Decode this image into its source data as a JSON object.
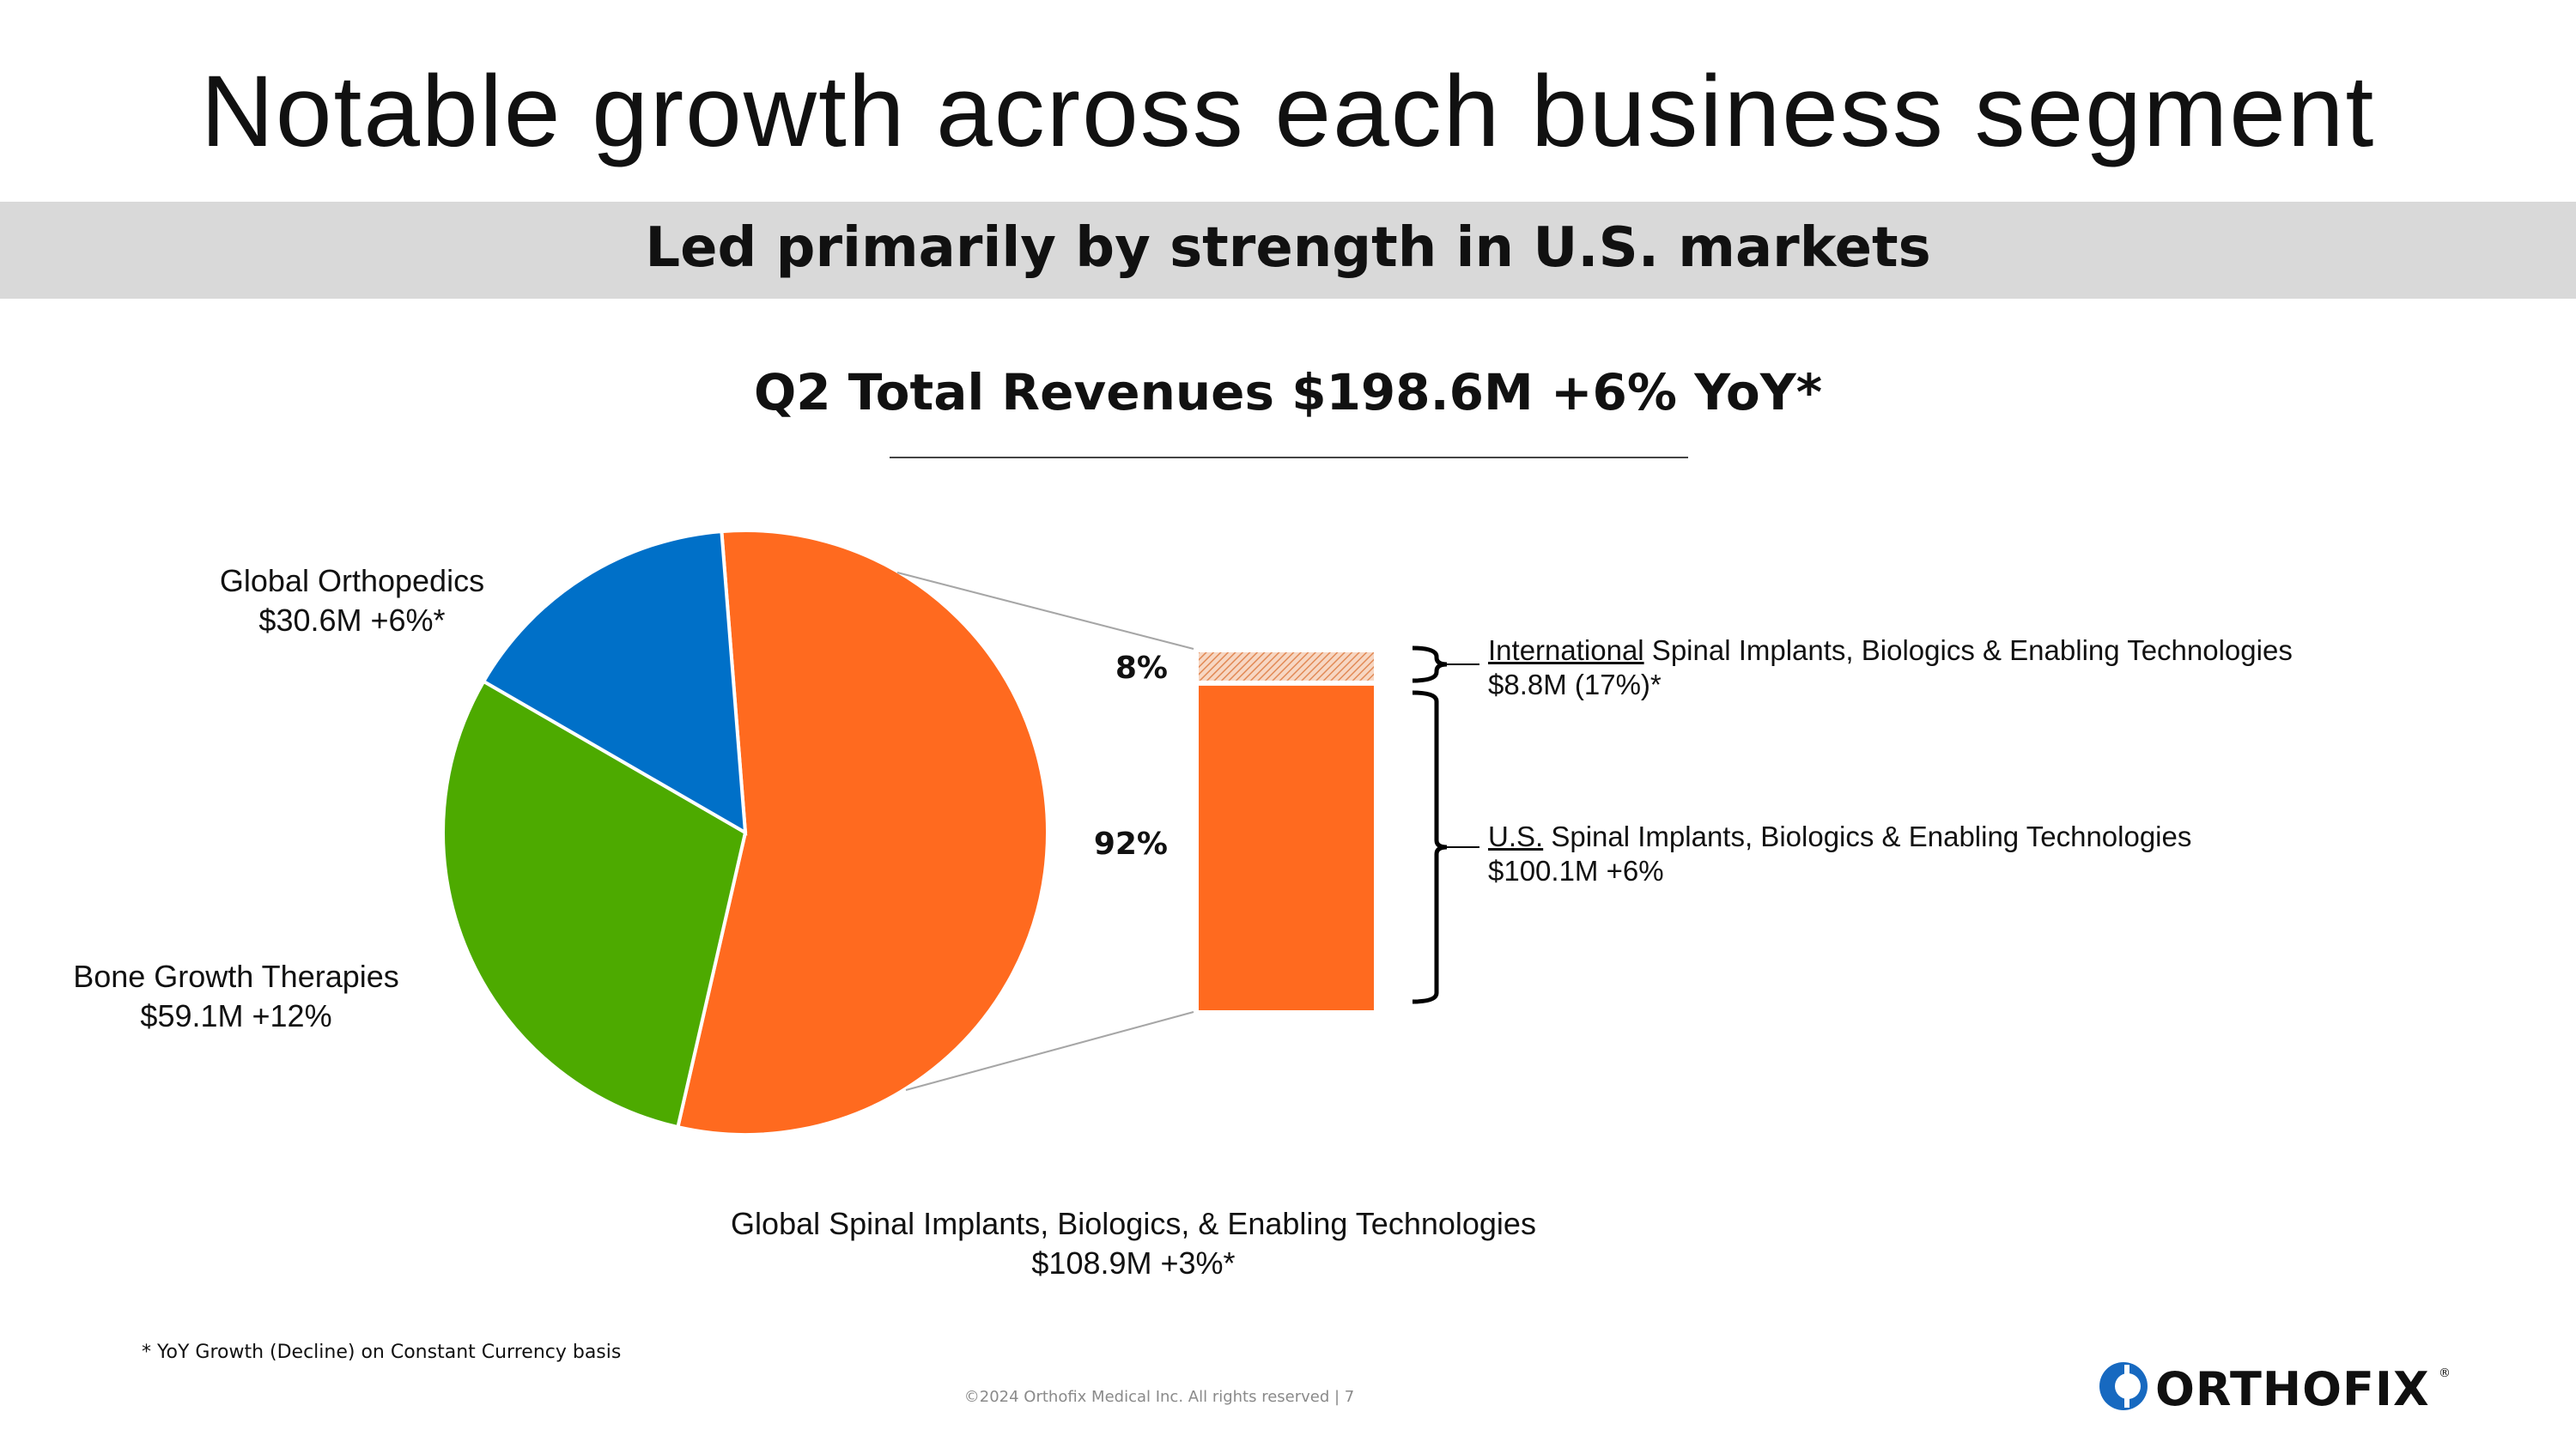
{
  "slide": {
    "title": "Notable growth across each business segment",
    "subtitle": "Led primarily by strength in U.S. markets",
    "footnote": "* YoY Growth (Decline) on Constant Currency basis",
    "copyright": "©2024 Orthofix Medical Inc. All rights reserved  |  7",
    "logo": "ORTHOFIX",
    "logo_mark": "®"
  },
  "colors": {
    "orange": "#FF6A1F",
    "green": "#4DAA00",
    "blue": "#0070C8",
    "hatch": "#E7A079"
  },
  "chart_data": [
    {
      "type": "pie",
      "title": "Q2 Total Revenues $198.6M +6% YoY*",
      "slices": [
        {
          "name": "Global Spinal Implants, Biologics, & Enabling Technologies",
          "value": 108.9,
          "label_value": "$108.9M +3%*",
          "color": "#FF6A1F"
        },
        {
          "name": "Bone Growth Therapies",
          "value": 59.1,
          "label_value": "$59.1M +12%",
          "color": "#4DAA00"
        },
        {
          "name": "Global Orthopedics",
          "value": 30.6,
          "label_value": "$30.6M +6%*",
          "color": "#0070C8"
        }
      ]
    },
    {
      "type": "bar",
      "stacked": true,
      "breakdown_of": "Global Spinal Implants, Biologics, & Enabling Technologies",
      "segments": [
        {
          "pct_label": "8%",
          "share": 8,
          "name_prefix": "International",
          "name_rest": " Spinal Implants, Biologics & Enabling Technologies",
          "value_label": "$8.8M (17%)*",
          "pattern": "hatched"
        },
        {
          "pct_label": "92%",
          "share": 92,
          "name_prefix": "U.S.",
          "name_rest": " Spinal Implants, Biologics & Enabling Technologies",
          "value_label": "$100.1M +6%",
          "pattern": "solid"
        }
      ]
    }
  ]
}
